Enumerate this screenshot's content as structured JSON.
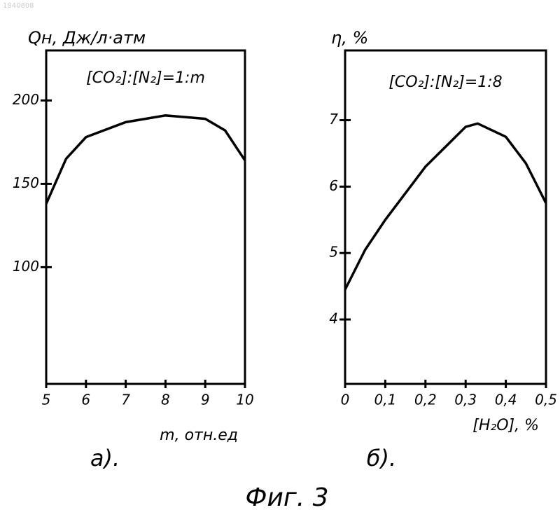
{
  "document_number": "1840808",
  "caption": "Фиг. 3",
  "chart_data": [
    {
      "type": "line",
      "panel_label": "а).",
      "y_label": "Qн, Дж/л·атм",
      "x_label": "m, отн.ед",
      "annotation": "[CO₂]:[N₂]=1:m",
      "x": [
        5,
        5.5,
        6,
        7,
        8,
        9,
        9.5,
        10
      ],
      "series": [
        {
          "color": "#000000",
          "values": [
            138,
            165,
            178,
            187,
            191,
            189,
            182,
            164
          ]
        }
      ],
      "xlim": [
        5,
        10
      ],
      "xticks": [
        5,
        6,
        7,
        8,
        9,
        10
      ],
      "ylim": [
        30,
        230
      ],
      "yticks": [
        100,
        150,
        200
      ]
    },
    {
      "type": "line",
      "panel_label": "б).",
      "y_label": "η, %",
      "x_label": "[H₂O], %",
      "annotation": "[CO₂]:[N₂]=1:8",
      "x": [
        0,
        0.05,
        0.1,
        0.2,
        0.3,
        0.33,
        0.4,
        0.45,
        0.5
      ],
      "series": [
        {
          "color": "#000000",
          "values": [
            4.45,
            5.05,
            5.5,
            6.3,
            6.9,
            6.95,
            6.75,
            6.35,
            5.75
          ]
        }
      ],
      "xlim": [
        0,
        0.5
      ],
      "xticks": [
        0,
        {
          "value": 0.1,
          "label": "0,1"
        },
        {
          "value": 0.2,
          "label": "0,2"
        },
        {
          "value": 0.3,
          "label": "0,3"
        },
        {
          "value": 0.4,
          "label": "0,4"
        },
        {
          "value": 0.5,
          "label": "0,5"
        }
      ],
      "ylim": [
        3.03,
        8.05
      ],
      "yticks": [
        4,
        5,
        6,
        7
      ]
    }
  ]
}
